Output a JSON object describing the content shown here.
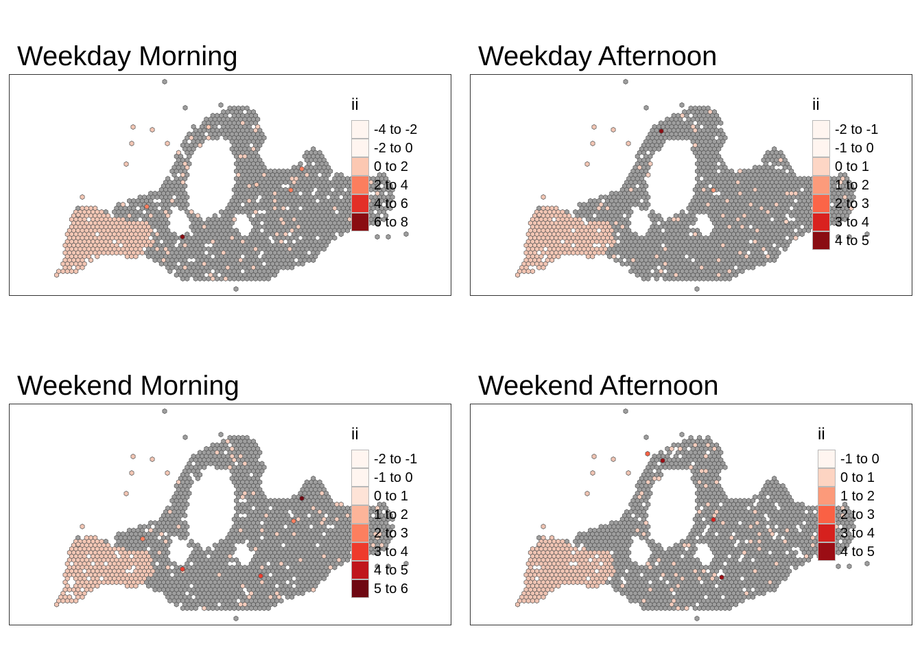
{
  "panels": [
    {
      "id": "weekday-morning",
      "title": "Weekday Morning",
      "legend": {
        "title": "ii",
        "classes": [
          {
            "label": "-4 to -2",
            "color": "#fff5f0"
          },
          {
            "label": "-2 to 0",
            "color": "#fff5f0"
          },
          {
            "label": "0 to 2",
            "color": "#fcc8b2"
          },
          {
            "label": "2 to 4",
            "color": "#fb7e5e"
          },
          {
            "label": "4 to 6",
            "color": "#e32f27"
          },
          {
            "label": "6 to 8",
            "color": "#8a0c12"
          }
        ]
      }
    },
    {
      "id": "weekday-afternoon",
      "title": "Weekday Afternoon",
      "legend": {
        "title": "ii",
        "classes": [
          {
            "label": "-2 to -1",
            "color": "#fff5f0"
          },
          {
            "label": "-1 to 0",
            "color": "#fff5f0"
          },
          {
            "label": "0 to 1",
            "color": "#fdd6c5"
          },
          {
            "label": "1 to 2",
            "color": "#fc9b7b"
          },
          {
            "label": "2 to 3",
            "color": "#fb6548"
          },
          {
            "label": "3 to 4",
            "color": "#d9221f"
          },
          {
            "label": "4 to 5",
            "color": "#8a0c12"
          }
        ]
      }
    },
    {
      "id": "weekend-morning",
      "title": "Weekend Morning",
      "legend": {
        "title": "ii",
        "classes": [
          {
            "label": "-2 to -1",
            "color": "#fff5f0"
          },
          {
            "label": "-1 to 0",
            "color": "#fff5f0"
          },
          {
            "label": "0 to 1",
            "color": "#fee3d7"
          },
          {
            "label": "1 to 2",
            "color": "#fcb499"
          },
          {
            "label": "2 to 3",
            "color": "#fc7f5f"
          },
          {
            "label": "3 to 4",
            "color": "#ee3b2c"
          },
          {
            "label": "4 to 5",
            "color": "#c0161c"
          },
          {
            "label": "5 to 6",
            "color": "#6f0812"
          }
        ]
      }
    },
    {
      "id": "weekend-afternoon",
      "title": "Weekend Afternoon",
      "legend": {
        "title": "ii",
        "classes": [
          {
            "label": "-1 to 0",
            "color": "#fff5f0"
          },
          {
            "label": "0 to 1",
            "color": "#fdd4c2"
          },
          {
            "label": "1 to 2",
            "color": "#fc9a7a"
          },
          {
            "label": "2 to 3",
            "color": "#fa6144"
          },
          {
            "label": "3 to 4",
            "color": "#d6211e"
          },
          {
            "label": "4 to 5",
            "color": "#9b0d14"
          }
        ]
      }
    }
  ],
  "colors": {
    "grid_fill": "#9e9e9e",
    "grid_stroke": "#555555",
    "pink_fill": "#f3c6b4",
    "frame": "#333333"
  }
}
